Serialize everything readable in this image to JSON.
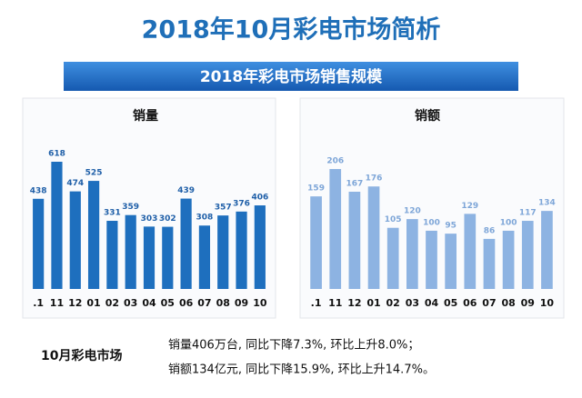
{
  "header": {
    "title": "2018年10月彩电市场简析",
    "banner": "2018年彩电市场销售规模"
  },
  "chart_data": [
    {
      "type": "bar",
      "title": "销量",
      "color": "#1e6fbe",
      "categories": [
        ".1",
        "11",
        "12",
        "01",
        "02",
        "03",
        "04",
        "05",
        "06",
        "07",
        "08",
        "09",
        "10"
      ],
      "values": [
        438,
        618,
        474,
        525,
        331,
        359,
        303,
        302,
        439,
        308,
        357,
        376,
        406
      ]
    },
    {
      "type": "bar",
      "title": "销额",
      "color": "#8db3e2",
      "categories": [
        ".1",
        "11",
        "12",
        "01",
        "02",
        "03",
        "04",
        "05",
        "06",
        "07",
        "08",
        "09",
        "10"
      ],
      "values": [
        159,
        206,
        167,
        176,
        105,
        120,
        100,
        95,
        129,
        86,
        100,
        117,
        134
      ]
    }
  ],
  "footer": {
    "label": "10月彩电市场",
    "lines": [
      "销量406万台, 同比下降7.3%, 环比上升8.0%；",
      "销额134亿元, 同比下降15.9%, 环比上升14.7%。"
    ]
  }
}
